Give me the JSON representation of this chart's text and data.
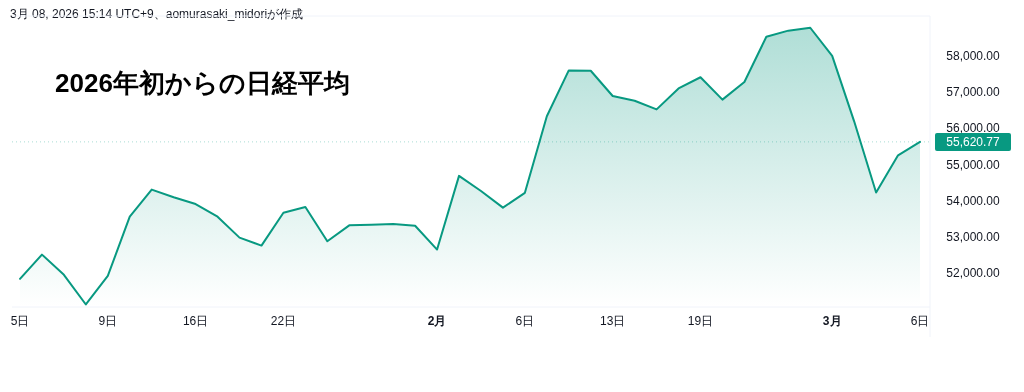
{
  "chart_data": {
    "type": "area",
    "title": "2026年初からの日経平均",
    "annotations": [
      "3月 08, 2026 15:14 UTC+9、aomurasaki_midoriが作成"
    ],
    "categories": [
      "5日",
      null,
      null,
      null,
      "9日",
      null,
      null,
      null,
      "16日",
      null,
      null,
      null,
      "22日",
      null,
      null,
      null,
      null,
      null,
      null,
      "2月",
      null,
      null,
      null,
      "6日",
      null,
      null,
      null,
      "13日",
      null,
      null,
      null,
      "19日",
      null,
      null,
      null,
      null,
      null,
      "3月",
      null,
      null,
      null,
      "6日"
    ],
    "series": [
      {
        "color": "#089981",
        "values": [
          51830,
          52500,
          51940,
          51120,
          51910,
          53550,
          54300,
          54090,
          53900,
          53550,
          52970,
          52750,
          53660,
          53820,
          52870,
          53310,
          53330,
          53350,
          53300,
          52640,
          54680,
          54260,
          53800,
          54210,
          56330,
          57600,
          57590,
          56890,
          56760,
          56520,
          57100,
          57410,
          56790,
          57280,
          58530,
          58700,
          58780,
          58000,
          56190,
          54220,
          55250,
          55620
        ]
      }
    ],
    "ref_lines": [
      {
        "axis": "y",
        "value": 55620.77,
        "label": "55,620.77",
        "color": "#089981"
      }
    ],
    "ylim": [
      51050,
      59050
    ],
    "yticks": [
      {
        "value": 52000,
        "label": "52,000.00"
      },
      {
        "value": 53000,
        "label": "53,000.00"
      },
      {
        "value": 54000,
        "label": "54,000.00"
      },
      {
        "value": 55000,
        "label": "55,000.00"
      },
      {
        "value": 56000,
        "label": "56,000.00"
      },
      {
        "value": 57000,
        "label": "57,000.00"
      },
      {
        "value": 58000,
        "label": "58,000.00"
      }
    ],
    "grid": false
  }
}
